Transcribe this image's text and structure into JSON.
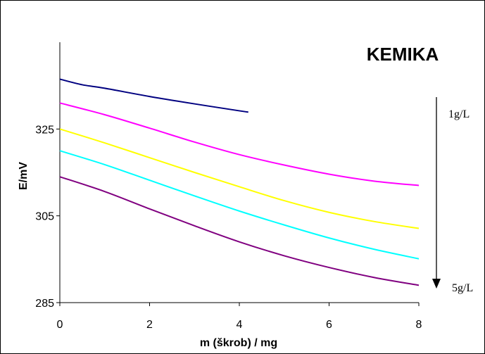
{
  "chart_data": {
    "type": "line",
    "title": "KEMIKA",
    "xlabel": "m (škrob) / mg",
    "ylabel": "E/mV",
    "xlim": [
      0,
      8
    ],
    "ylim": [
      285,
      345
    ],
    "x_ticks": [
      "0",
      "2",
      "4",
      "6",
      "8"
    ],
    "y_ticks": [
      "285",
      "305",
      "325"
    ],
    "y_tick_values": [
      285,
      305,
      325
    ],
    "x_tick_values": [
      0,
      2,
      4,
      6,
      8
    ],
    "grid": false,
    "legend": "none",
    "annotations": {
      "top_label": "1g/L",
      "bottom_label": "5g/L"
    },
    "series": [
      {
        "color": "#000080",
        "x": [
          0,
          0.5,
          1,
          2,
          3,
          4,
          4.2
        ],
        "y": [
          336.5,
          335.2,
          334.4,
          332.5,
          330.8,
          329.2,
          328.9
        ]
      },
      {
        "color": "#ff00ff",
        "x": [
          0,
          1,
          2,
          3,
          4,
          5,
          6,
          7,
          8
        ],
        "y": [
          331.0,
          328.3,
          325.2,
          322.0,
          319.1,
          316.7,
          314.6,
          313.0,
          312.0
        ]
      },
      {
        "color": "#ffff00",
        "x": [
          0,
          1,
          2,
          3,
          4,
          5,
          6,
          7,
          8
        ],
        "y": [
          325.0,
          321.8,
          318.4,
          315.0,
          311.7,
          308.5,
          305.8,
          303.7,
          302.1
        ]
      },
      {
        "color": "#00ffff",
        "x": [
          0,
          1,
          2,
          3,
          4,
          5,
          6,
          7,
          8
        ],
        "y": [
          320.0,
          316.8,
          313.2,
          309.6,
          306.1,
          302.9,
          299.9,
          297.3,
          295.1
        ]
      },
      {
        "color": "#800080",
        "x": [
          0,
          1,
          2,
          3,
          4,
          5,
          6,
          7,
          8
        ],
        "y": [
          314.0,
          310.6,
          306.6,
          302.7,
          299.0,
          295.8,
          293.1,
          290.8,
          289.0
        ]
      }
    ]
  }
}
